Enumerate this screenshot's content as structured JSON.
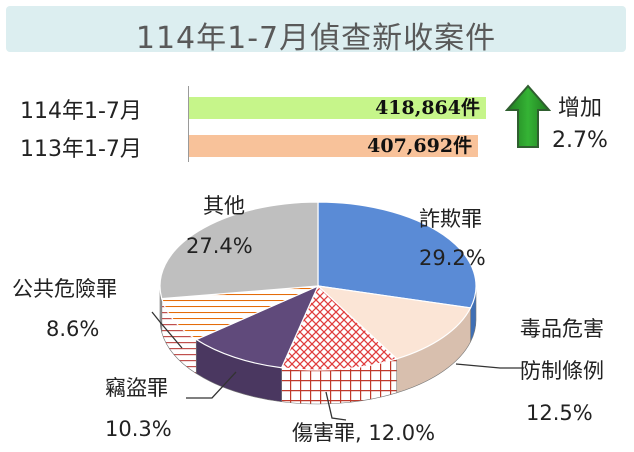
{
  "title": "114年1-7月偵查新收案件",
  "comparison": {
    "rows": [
      {
        "label": "114年1-7月",
        "value": 418864,
        "value_label": "418,864件",
        "color": "#c6f58a"
      },
      {
        "label": "113年1-7月",
        "value": 407692,
        "value_label": "407,692件",
        "color": "#f8c29a"
      }
    ],
    "change_label": "增加",
    "change_value": "2.7%",
    "arrow_icon": "up-arrow-icon"
  },
  "chart_data": {
    "type": "pie",
    "title": "114年1-7月偵查新收案件",
    "slices": [
      {
        "name": "詐欺罪",
        "value": 29.2,
        "value_label": "29.2%",
        "color": "#5a8bd6"
      },
      {
        "name_line1": "毒品危害",
        "name_line2": "防制條例",
        "value": 12.5,
        "value_label": "12.5%",
        "color": "#fbe5d6"
      },
      {
        "name": "傷害罪",
        "value": 12.0,
        "value_label": "12.0%",
        "label_text": "傷害罪, 12.0%",
        "color": "#ffffff",
        "pattern": "red-grid"
      },
      {
        "name": "竊盜罪",
        "value": 10.3,
        "value_label": "10.3%",
        "color": "#604a7b"
      },
      {
        "name": "公共危險罪",
        "value": 8.6,
        "value_label": "8.6%",
        "color": "#ffffff",
        "pattern": "orange-stripes"
      },
      {
        "name": "其他",
        "value": 27.4,
        "value_label": "27.4%",
        "color": "#bfbfbf"
      }
    ]
  }
}
